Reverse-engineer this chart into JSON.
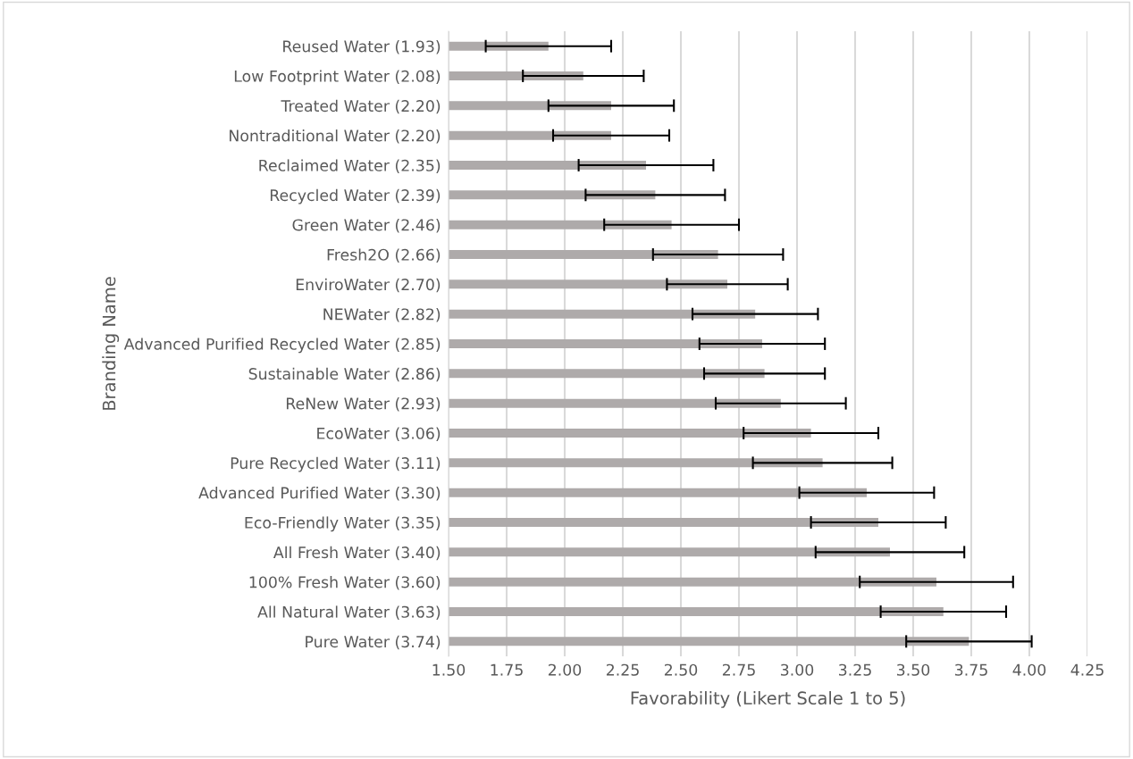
{
  "chart_data": {
    "type": "bar",
    "orientation": "horizontal",
    "xlabel": "Favorability (Likert Scale 1 to 5)",
    "ylabel": "Branding Name",
    "categories": [
      "Reused Water (1.93)",
      "Low Footprint Water (2.08)",
      "Treated Water (2.20)",
      "Nontraditional Water (2.20)",
      "Reclaimed Water (2.35)",
      "Recycled Water (2.39)",
      "Green Water (2.46)",
      "Fresh2O (2.66)",
      "EnviroWater (2.70)",
      "NEWater (2.82)",
      "Advanced Purified Recycled Water (2.85)",
      "Sustainable Water (2.86)",
      "ReNew Water (2.93)",
      "EcoWater (3.06)",
      "Pure Recycled Water (3.11)",
      "Advanced Purified Water (3.30)",
      "Eco-Friendly Water (3.35)",
      "All Fresh Water (3.40)",
      "100% Fresh Water (3.60)",
      "All Natural Water (3.63)",
      "Pure Water (3.74)"
    ],
    "values": [
      1.93,
      2.08,
      2.2,
      2.2,
      2.35,
      2.39,
      2.46,
      2.66,
      2.7,
      2.82,
      2.85,
      2.86,
      2.93,
      3.06,
      3.11,
      3.3,
      3.35,
      3.4,
      3.6,
      3.63,
      3.74
    ],
    "errors": [
      0.27,
      0.26,
      0.27,
      0.25,
      0.29,
      0.3,
      0.29,
      0.28,
      0.26,
      0.27,
      0.27,
      0.26,
      0.28,
      0.29,
      0.3,
      0.29,
      0.29,
      0.32,
      0.33,
      0.27,
      0.27
    ],
    "color": "#aeaaaa",
    "xlim": [
      1.5,
      4.25
    ],
    "xticks": [
      {
        "value": 1.5,
        "label": "1.50"
      },
      {
        "value": 1.75,
        "label": "1.75"
      },
      {
        "value": 2.0,
        "label": "2.00"
      },
      {
        "value": 2.25,
        "label": "2.25"
      },
      {
        "value": 2.5,
        "label": "2.50"
      },
      {
        "value": 2.75,
        "label": "2.75"
      },
      {
        "value": 3.0,
        "label": "3.00"
      },
      {
        "value": 3.25,
        "label": "3.25"
      },
      {
        "value": 3.5,
        "label": "3.50"
      },
      {
        "value": 3.75,
        "label": "3.75"
      },
      {
        "value": 4.0,
        "label": "4.00"
      },
      {
        "value": 4.25,
        "label": "4.25"
      }
    ],
    "grid": "x"
  }
}
